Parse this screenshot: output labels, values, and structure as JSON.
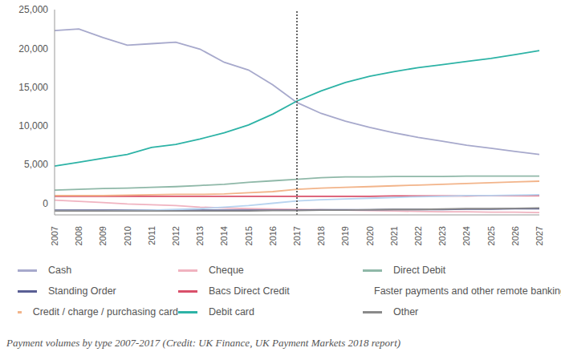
{
  "chart_data": {
    "type": "line",
    "caption": "Payment volumes by type 2007-2017 (Credit: UK Finance, UK Payment Markets 2018 report)",
    "categories": [
      "2007",
      "2008",
      "2009",
      "2010",
      "2011",
      "2012",
      "2013",
      "2014",
      "2015",
      "2016",
      "2017",
      "2018",
      "2019",
      "2020",
      "2021",
      "2022",
      "2023",
      "2024",
      "2025",
      "2026",
      "2027"
    ],
    "series": [
      {
        "name": "Cash",
        "color": "#a7a9cc",
        "values": [
          22300,
          22500,
          21400,
          20400,
          20600,
          20800,
          19900,
          18200,
          17200,
          15300,
          13000,
          11600,
          10600,
          9800,
          9100,
          8500,
          8000,
          7500,
          7100,
          6700,
          6300
        ]
      },
      {
        "name": "Cheque",
        "color": "#f0b3c0",
        "values": [
          400,
          250,
          100,
          -100,
          -200,
          -300,
          -500,
          -600,
          -700,
          -750,
          -800,
          -850,
          -900,
          -950,
          -1000,
          -1050,
          -1100,
          -1100,
          -1150,
          -1150,
          -1200
        ]
      },
      {
        "name": "Direct Debit",
        "color": "#8fb8a8",
        "values": [
          1700,
          1800,
          1900,
          1950,
          2050,
          2150,
          2300,
          2450,
          2700,
          2900,
          3100,
          3300,
          3400,
          3400,
          3450,
          3450,
          3450,
          3500,
          3500,
          3500,
          3500
        ]
      },
      {
        "name": "Standing Order",
        "color": "#5a5f94",
        "values": [
          -900,
          -900,
          -900,
          -900,
          -900,
          -900,
          -900,
          -900,
          -900,
          -900,
          -900,
          -850,
          -850,
          -850,
          -800,
          -800,
          -800,
          -750,
          -750,
          -700,
          -700
        ]
      },
      {
        "name": "Bacs Direct Credit",
        "color": "#d9506a",
        "values": [
          900,
          900,
          900,
          900,
          900,
          900,
          900,
          900,
          900,
          900,
          900,
          900,
          900,
          900,
          950,
          950,
          950,
          950,
          1000,
          1000,
          1000
        ]
      },
      {
        "name": "Faster payments and other remote banking",
        "color": "#b8d4f0",
        "values": [
          -1000,
          -1000,
          -1000,
          -950,
          -900,
          -800,
          -700,
          -500,
          -300,
          0,
          300,
          450,
          550,
          650,
          750,
          850,
          900,
          1000,
          1000,
          1050,
          1100
        ]
      },
      {
        "name": "Credit / charge / purchasing card",
        "color": "#f2b48a",
        "values": [
          1000,
          1000,
          1000,
          1050,
          1100,
          1150,
          1150,
          1200,
          1350,
          1500,
          1800,
          1950,
          2050,
          2150,
          2250,
          2350,
          2450,
          2550,
          2650,
          2750,
          2850
        ]
      },
      {
        "name": "Debit card",
        "color": "#2db3a6",
        "values": [
          4800,
          5300,
          5800,
          6300,
          7200,
          7600,
          8300,
          9100,
          10100,
          11500,
          13200,
          14500,
          15600,
          16400,
          17000,
          17500,
          17900,
          18300,
          18700,
          19200,
          19700
        ]
      },
      {
        "name": "Other",
        "color": "#8a8a8a",
        "values": [
          -1000,
          -1000,
          -1000,
          -1000,
          -1000,
          -1000,
          -1000,
          -1000,
          -1000,
          -950,
          -950,
          -900,
          -900,
          -850,
          -800,
          -800,
          -750,
          -700,
          -700,
          -650,
          -600
        ]
      }
    ],
    "ylim": [
      -1500,
      25000
    ],
    "yticks": [
      0,
      {
        "value": 5000,
        "label": "5,000"
      },
      {
        "value": 10000,
        "label": "10,000"
      },
      {
        "value": 15000,
        "label": "15,000"
      },
      {
        "value": 20000,
        "label": "20,000"
      },
      {
        "value": 25000,
        "label": "25,000"
      }
    ],
    "vertical_line": "2017",
    "legend": "bottom",
    "grid": false
  }
}
